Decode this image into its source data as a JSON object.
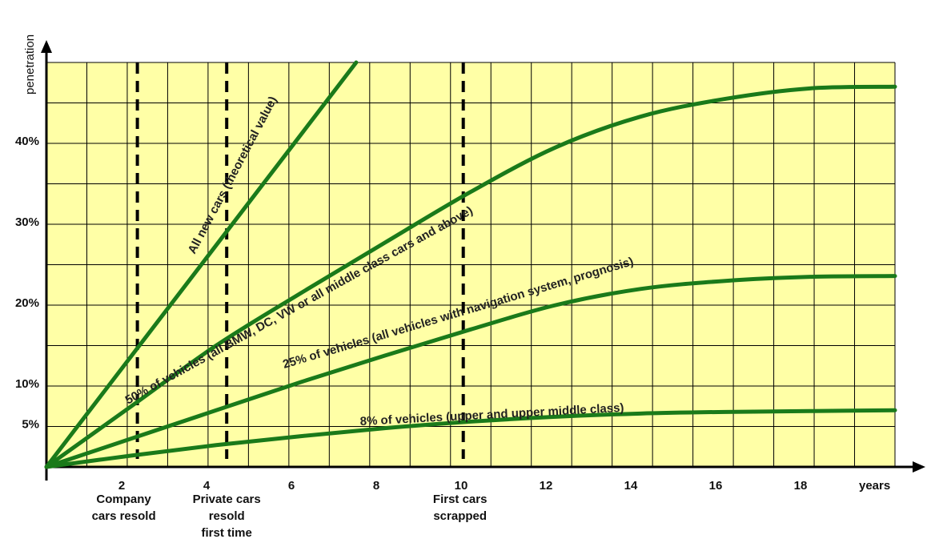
{
  "chart_data": {
    "type": "line",
    "title": "",
    "xlabel": "years",
    "ylabel": "penetration",
    "xlim": [
      0,
      20
    ],
    "ylim": [
      0,
      50
    ],
    "grid": true,
    "x_ticks": [
      "2",
      "4",
      "6",
      "8",
      "10",
      "12",
      "14",
      "16",
      "18"
    ],
    "y_ticks": [
      {
        "value": 5,
        "label": "5%"
      },
      {
        "value": 10,
        "label": "10%"
      },
      {
        "value": 20,
        "label": "20%"
      },
      {
        "value": 30,
        "label": "30%"
      },
      {
        "value": 40,
        "label": "40%"
      }
    ],
    "colors": {
      "background": "#FFFFA6",
      "grid": "#000000",
      "series": "#1A7A1A",
      "marker_line": "#000000"
    },
    "series": [
      {
        "name": "All new cars (theoretical value)",
        "x": [
          0,
          7.3
        ],
        "y": [
          0,
          50
        ]
      },
      {
        "name": "50% of vehicles (all BMW, DC, VW or all middle class cars and above)",
        "x": [
          0,
          2,
          4,
          6,
          8,
          10,
          12,
          14,
          16,
          18,
          20
        ],
        "y": [
          0,
          7.5,
          15,
          21.5,
          27.8,
          34,
          39.5,
          43.3,
          45.5,
          46.8,
          47
        ]
      },
      {
        "name": "25% of vehicles (all vehicles with navigation system, prognosis)",
        "x": [
          0,
          2,
          4,
          6,
          8,
          10,
          12,
          14,
          16,
          18,
          20
        ],
        "y": [
          0,
          3.5,
          7,
          10.5,
          13.8,
          17,
          20,
          22,
          23,
          23.5,
          23.6
        ]
      },
      {
        "name": "8% of vehicles (upper and upper middle class)",
        "x": [
          0,
          2,
          4,
          6,
          8,
          10,
          12,
          14,
          16,
          18,
          20
        ],
        "y": [
          0,
          1.4,
          2.7,
          3.8,
          4.8,
          5.6,
          6.2,
          6.6,
          6.8,
          6.9,
          7
        ]
      }
    ],
    "markers": [
      {
        "x": 2.2,
        "label": [
          "Company",
          "cars resold"
        ]
      },
      {
        "x": 4.4,
        "label": [
          "Private cars",
          "resold",
          "first time"
        ]
      },
      {
        "x": 9.9,
        "label": [
          "First cars",
          "scrapped"
        ]
      }
    ]
  }
}
